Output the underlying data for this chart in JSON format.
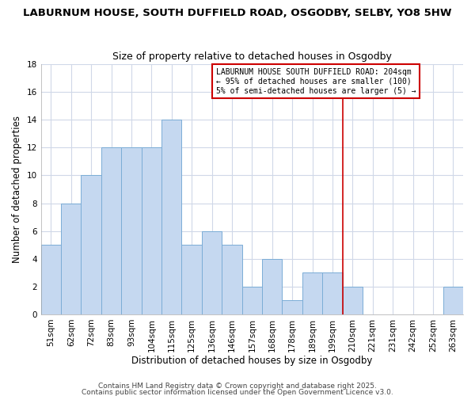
{
  "title1": "LABURNUM HOUSE, SOUTH DUFFIELD ROAD, OSGODBY, SELBY, YO8 5HW",
  "title2": "Size of property relative to detached houses in Osgodby",
  "xlabel": "Distribution of detached houses by size in Osgodby",
  "ylabel": "Number of detached properties",
  "categories": [
    "51sqm",
    "62sqm",
    "72sqm",
    "83sqm",
    "93sqm",
    "104sqm",
    "115sqm",
    "125sqm",
    "136sqm",
    "146sqm",
    "157sqm",
    "168sqm",
    "178sqm",
    "189sqm",
    "199sqm",
    "210sqm",
    "221sqm",
    "231sqm",
    "242sqm",
    "252sqm",
    "263sqm"
  ],
  "values": [
    5,
    8,
    10,
    12,
    12,
    12,
    14,
    5,
    6,
    5,
    2,
    4,
    1,
    3,
    3,
    2,
    0,
    0,
    0,
    0,
    2
  ],
  "bar_color": "#C5D8F0",
  "bar_edge_color": "#7BADD6",
  "vline_x": 14.5,
  "vline_color": "#CC0000",
  "annotation_lines": [
    "LABURNUM HOUSE SOUTH DUFFIELD ROAD: 204sqm",
    "← 95% of detached houses are smaller (100)",
    "5% of semi-detached houses are larger (5) →"
  ],
  "annotation_box_color": "#CC0000",
  "ylim": [
    0,
    18
  ],
  "yticks": [
    0,
    2,
    4,
    6,
    8,
    10,
    12,
    14,
    16,
    18
  ],
  "footer1": "Contains HM Land Registry data © Crown copyright and database right 2025.",
  "footer2": "Contains public sector information licensed under the Open Government Licence v3.0.",
  "background_color": "#FFFFFF",
  "plot_bg_color": "#FFFFFF",
  "grid_color": "#D0D8E8",
  "title_fontsize": 9.5,
  "subtitle_fontsize": 9,
  "axis_label_fontsize": 8.5,
  "tick_fontsize": 7.5,
  "footer_fontsize": 6.5
}
